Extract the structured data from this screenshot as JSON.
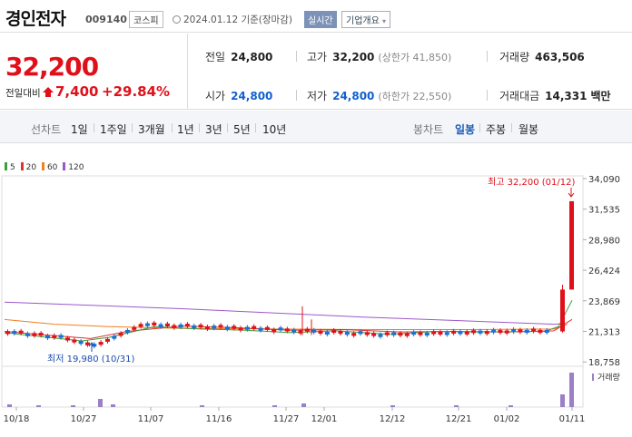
{
  "header": {
    "company": "경인전자",
    "code": "009140",
    "market": "코스피",
    "date": "2024.01.12 기준(장마감)",
    "realtime": "실시간",
    "overview": "기업개요"
  },
  "price": {
    "current": "32,200",
    "change_label": "전일대비",
    "change": "7,400",
    "change_pct": "+29.84%"
  },
  "stats": {
    "prev_label": "전일",
    "prev": "24,800",
    "high_label": "고가",
    "high": "32,200",
    "high_limit": "(상한가 41,850)",
    "volume_label": "거래량",
    "volume": "463,506",
    "open_label": "시가",
    "open": "24,800",
    "low_label": "저가",
    "low": "24,800",
    "low_limit": "(하한가 22,550)",
    "amount_label": "거래대금",
    "amount": "14,331",
    "amount_unit": "백만"
  },
  "tabs": {
    "line_chart": "선차트",
    "d1": "1일",
    "w1": "1주일",
    "m3": "3개월",
    "y1": "1년",
    "y3": "3년",
    "y5": "5년",
    "y10": "10년",
    "candle_chart": "봉차트",
    "daily": "일봉",
    "weekly": "주봉",
    "monthly": "월봉"
  },
  "legend": [
    {
      "label": "5",
      "color": "#3ca03c"
    },
    {
      "label": "20",
      "color": "#e03030"
    },
    {
      "label": "60",
      "color": "#f08020"
    },
    {
      "label": "120",
      "color": "#9b59c8"
    }
  ],
  "chart_data": {
    "type": "candlestick",
    "y_ticks": [
      "34,090",
      "31,535",
      "28,980",
      "26,424",
      "23,869",
      "21,313",
      "18,758"
    ],
    "x_ticks": [
      "10/18",
      "10/27",
      "11/07",
      "11/16",
      "11/27",
      "12/01",
      "12/12",
      "12/21",
      "01/02",
      "01/11"
    ],
    "high_annotation": "최고 32,200 (01/12)",
    "low_annotation": "최저 19,980 (10/31)",
    "volume_label": "거래량",
    "colors": {
      "up": "#e0101a",
      "down": "#1a6fd8",
      "ma5": "#3ca03c",
      "ma20": "#e03030",
      "ma60": "#f08020",
      "ma120": "#9b59c8",
      "volume": "#9b7fc8"
    }
  }
}
